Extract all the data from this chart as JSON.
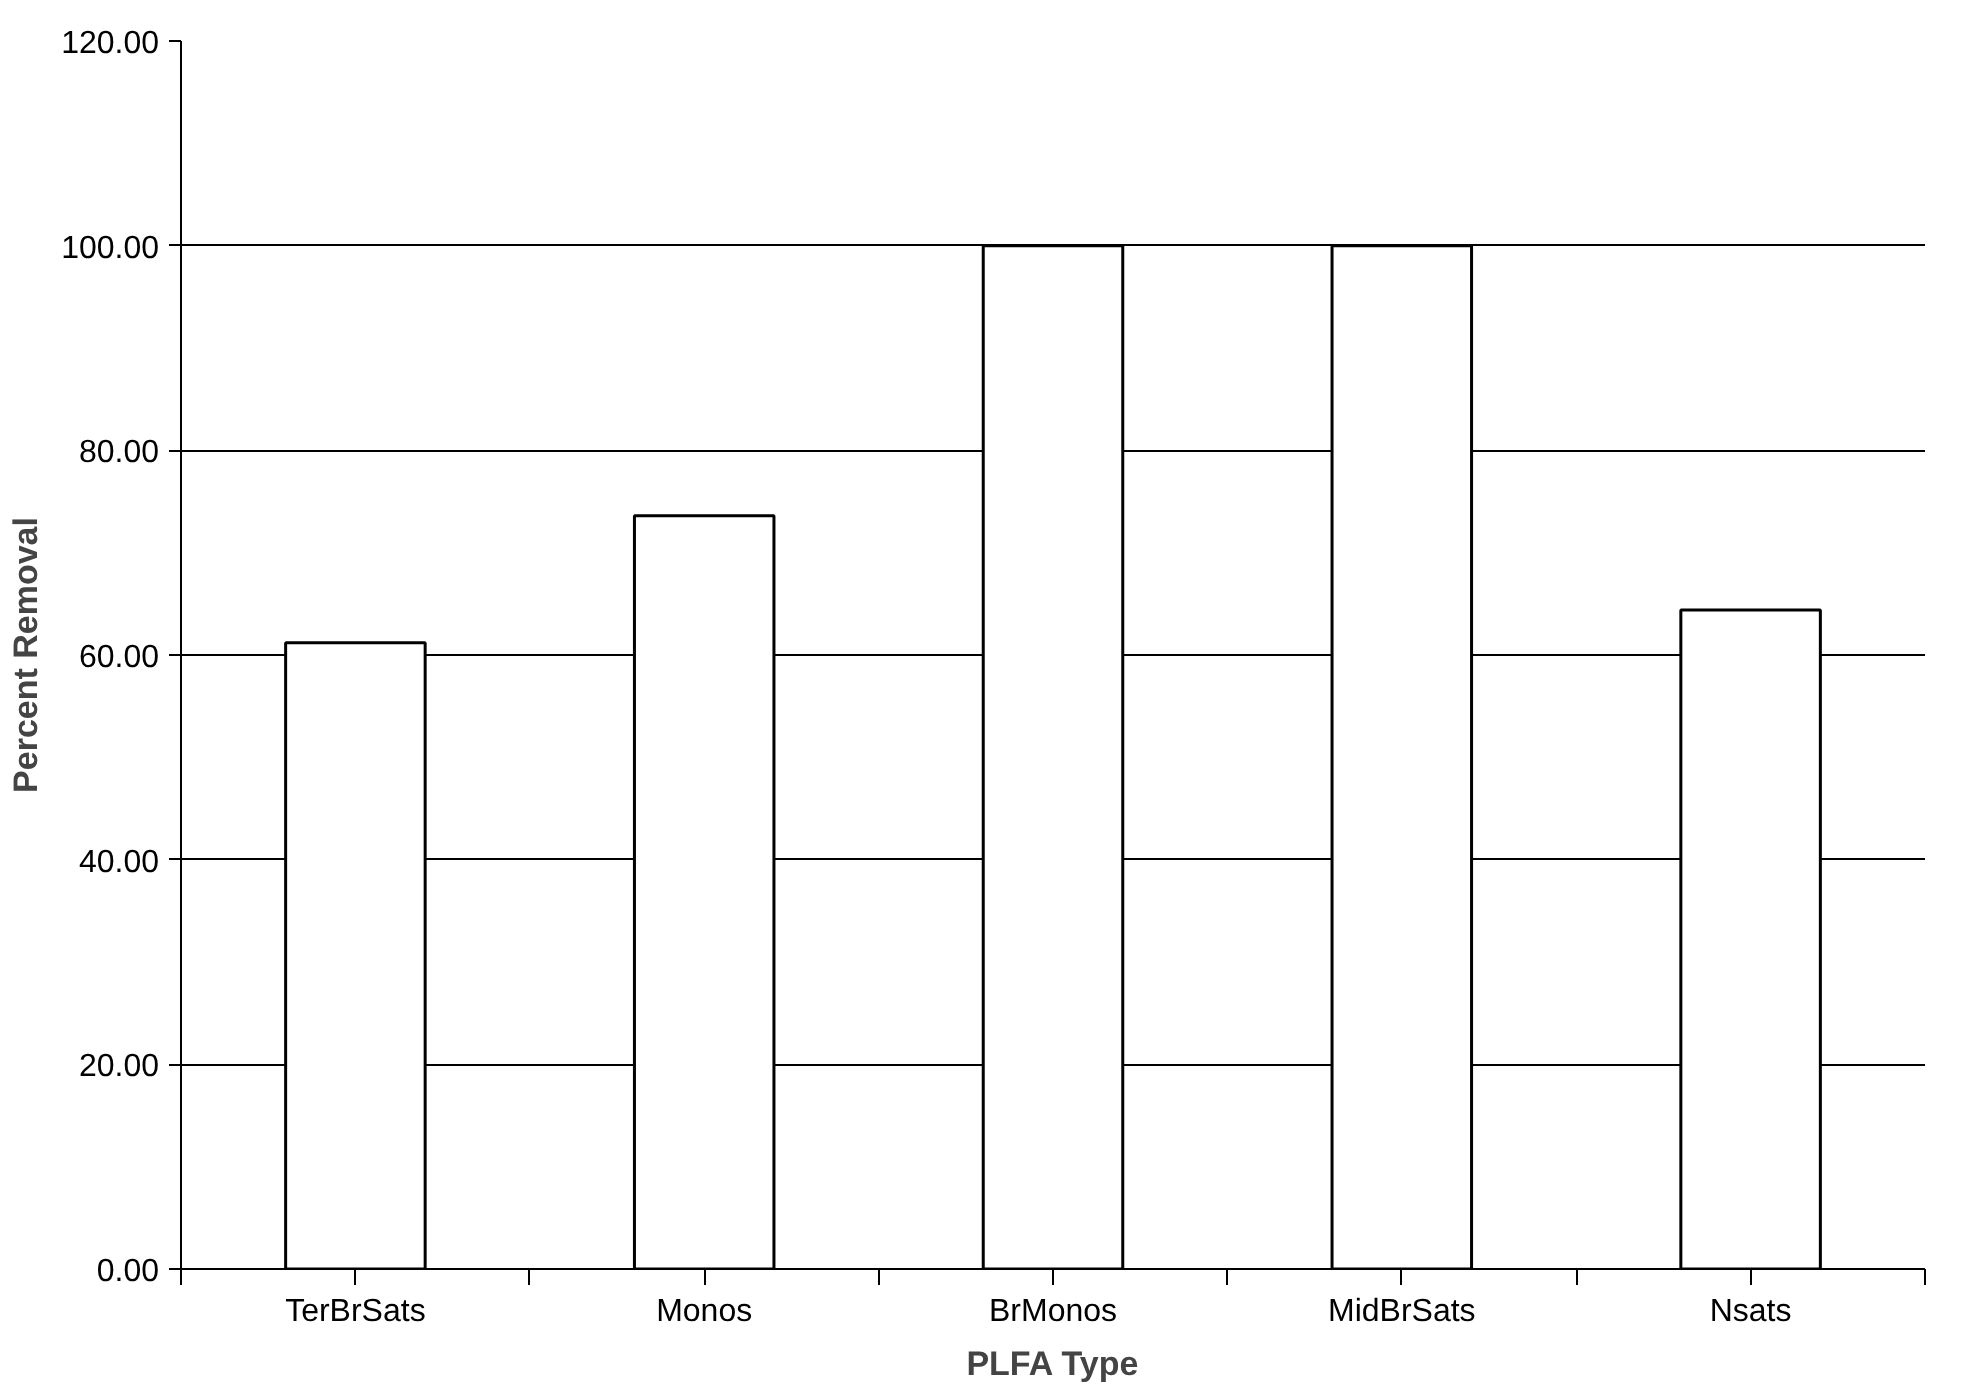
{
  "chart_data": {
    "type": "bar",
    "xlabel": "PLFA Type",
    "ylabel": "Percent Removal",
    "categories": [
      "TerBrSats",
      "Monos",
      "BrMonos",
      "MidBrSats",
      "Nsats"
    ],
    "values": [
      61.2,
      73.6,
      100,
      100,
      64.4
    ],
    "color": "#000000",
    "ylim": [
      0,
      120
    ],
    "yticks": [
      {
        "value": 0,
        "label": "0.00"
      },
      {
        "value": 20,
        "label": "20.00"
      },
      {
        "value": 40,
        "label": "40.00"
      },
      {
        "value": 60,
        "label": "60.00"
      },
      {
        "value": 80,
        "label": "80.00"
      },
      {
        "value": 100,
        "label": "100.00"
      },
      {
        "value": 120,
        "label": "120.00"
      }
    ],
    "grid": "y"
  }
}
